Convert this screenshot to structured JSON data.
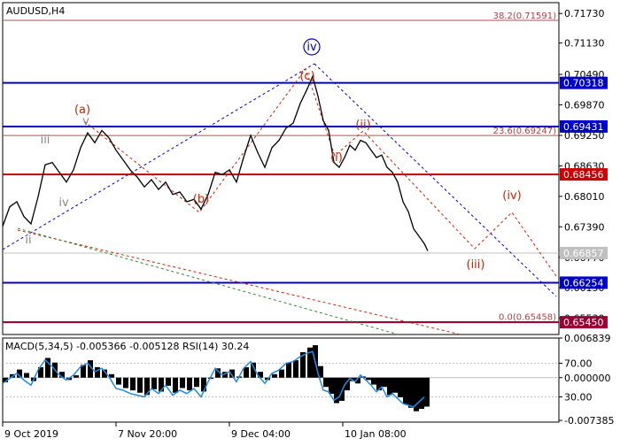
{
  "chart_data": [
    {
      "type": "line",
      "title": "AUDUSD,H4",
      "symbol": "AUDUSD",
      "timeframe": "H4",
      "ylim": [
        0.652,
        0.7195
      ],
      "y_ticks": [
        {
          "label": "0.71730",
          "value": 0.7173
        },
        {
          "label": "0.71130",
          "value": 0.7113
        },
        {
          "label": "0.70490",
          "value": 0.7049
        },
        {
          "label": "0.69870",
          "value": 0.6987
        },
        {
          "label": "0.69250",
          "value": 0.6925
        },
        {
          "label": "0.68630",
          "value": 0.6863
        },
        {
          "label": "0.68010",
          "value": 0.6801
        },
        {
          "label": "0.67390",
          "value": 0.6739
        },
        {
          "label": "0.66770",
          "value": 0.6677
        },
        {
          "label": "0.66150",
          "value": 0.6615
        },
        {
          "label": "0.65530",
          "value": 0.6553
        }
      ],
      "x_ticks": [
        "9 Oct 2019",
        "7 Nov 20:00",
        "9 Dec 04:00",
        "10 Jan 08:00"
      ],
      "price_series": [
        [
          0,
          0.674
        ],
        [
          8,
          0.678
        ],
        [
          16,
          0.679
        ],
        [
          24,
          0.676
        ],
        [
          32,
          0.6745
        ],
        [
          40,
          0.68
        ],
        [
          48,
          0.6865
        ],
        [
          56,
          0.687
        ],
        [
          64,
          0.685
        ],
        [
          72,
          0.683
        ],
        [
          80,
          0.6855
        ],
        [
          88,
          0.69
        ],
        [
          96,
          0.693
        ],
        [
          104,
          0.691
        ],
        [
          112,
          0.6935
        ],
        [
          120,
          0.692
        ],
        [
          128,
          0.6895
        ],
        [
          136,
          0.6875
        ],
        [
          144,
          0.6855
        ],
        [
          152,
          0.684
        ],
        [
          160,
          0.682
        ],
        [
          168,
          0.6835
        ],
        [
          176,
          0.6815
        ],
        [
          184,
          0.683
        ],
        [
          192,
          0.6805
        ],
        [
          200,
          0.681
        ],
        [
          208,
          0.679
        ],
        [
          216,
          0.6795
        ],
        [
          224,
          0.6775
        ],
        [
          232,
          0.6805
        ],
        [
          240,
          0.685
        ],
        [
          248,
          0.6845
        ],
        [
          256,
          0.6855
        ],
        [
          264,
          0.683
        ],
        [
          272,
          0.688
        ],
        [
          280,
          0.6925
        ],
        [
          288,
          0.689
        ],
        [
          296,
          0.686
        ],
        [
          304,
          0.69
        ],
        [
          312,
          0.6915
        ],
        [
          320,
          0.694
        ],
        [
          328,
          0.695
        ],
        [
          336,
          0.699
        ],
        [
          344,
          0.702
        ],
        [
          350,
          0.7045
        ],
        [
          356,
          0.7005
        ],
        [
          362,
          0.6955
        ],
        [
          368,
          0.6935
        ],
        [
          374,
          0.687
        ],
        [
          380,
          0.686
        ],
        [
          386,
          0.688
        ],
        [
          392,
          0.6905
        ],
        [
          398,
          0.6895
        ],
        [
          404,
          0.6915
        ],
        [
          410,
          0.691
        ],
        [
          416,
          0.6895
        ],
        [
          422,
          0.688
        ],
        [
          428,
          0.6885
        ],
        [
          434,
          0.686
        ],
        [
          440,
          0.685
        ],
        [
          446,
          0.683
        ],
        [
          452,
          0.679
        ],
        [
          458,
          0.677
        ],
        [
          464,
          0.6735
        ],
        [
          470,
          0.672
        ],
        [
          476,
          0.6705
        ],
        [
          480,
          0.669
        ]
      ],
      "current_price": {
        "label": "0.66857",
        "value": 0.66857
      },
      "horizontal_levels": [
        {
          "label": "0.70318",
          "value": 0.70318,
          "color": "#0000cc"
        },
        {
          "label": "0.69431",
          "value": 0.69431,
          "color": "#0000cc"
        },
        {
          "label": "0.68456",
          "value": 0.68456,
          "color": "#cc0000"
        },
        {
          "label": "0.66254",
          "value": 0.66254,
          "color": "#0000cc"
        },
        {
          "label": "0.65450",
          "value": 0.6545,
          "color": "#990033"
        }
      ],
      "fibonacci_levels": [
        {
          "label": "38.2(0.71591)",
          "value": 0.71591
        },
        {
          "label": "23.6(0.69247)",
          "value": 0.69247
        },
        {
          "label": "0.0(0.65458)",
          "value": 0.65458
        }
      ],
      "wave_labels": [
        {
          "text": "ii",
          "color": "#888888"
        },
        {
          "text": "iii",
          "color": "#888888"
        },
        {
          "text": "iv",
          "color": "#888888"
        },
        {
          "text": "v",
          "color": "#888888"
        },
        {
          "text": "(a)",
          "color": "#cc2200"
        },
        {
          "text": "(b)",
          "color": "#cc2200"
        },
        {
          "text": "(c)",
          "color": "#cc2200"
        },
        {
          "text": "iv",
          "color": "#0000cc",
          "circled": true
        },
        {
          "text": "(i)",
          "color": "#cc2200"
        },
        {
          "text": "(ii)",
          "color": "#cc2200"
        },
        {
          "text": "(iii)",
          "color": "#cc2200"
        },
        {
          "text": "(iv)",
          "color": "#cc2200"
        }
      ]
    },
    {
      "type": "line",
      "title": "MACD(5,34,5) -0.005366 -0.005128 RSI(14) 30.24",
      "ylim": [
        -0.00768,
        0.00684
      ],
      "y_ticks_macd": [
        {
          "label": "0.006839",
          "value": 0.006839
        },
        {
          "label": "0.000000",
          "value": 0.0
        },
        {
          "label": "-0.007385",
          "value": -0.007385
        }
      ],
      "y_ticks_rsi": [
        {
          "label": "70.00",
          "value": 70
        },
        {
          "label": "30.00",
          "value": 30
        }
      ],
      "macd_histogram": [
        [
          0,
          -0.0008
        ],
        [
          8,
          0.0006
        ],
        [
          16,
          0.0014
        ],
        [
          24,
          0.0008
        ],
        [
          32,
          -0.0006
        ],
        [
          40,
          0.0018
        ],
        [
          48,
          0.0034
        ],
        [
          56,
          0.0026
        ],
        [
          64,
          0.001
        ],
        [
          72,
          -0.0004
        ],
        [
          80,
          0.0004
        ],
        [
          88,
          0.0022
        ],
        [
          96,
          0.003
        ],
        [
          104,
          0.0018
        ],
        [
          112,
          0.0014
        ],
        [
          120,
          0.0006
        ],
        [
          128,
          -0.0012
        ],
        [
          136,
          -0.0018
        ],
        [
          144,
          -0.0022
        ],
        [
          152,
          -0.0026
        ],
        [
          160,
          -0.003
        ],
        [
          168,
          -0.002
        ],
        [
          176,
          -0.0024
        ],
        [
          184,
          -0.0014
        ],
        [
          192,
          -0.0026
        ],
        [
          200,
          -0.0018
        ],
        [
          208,
          -0.0022
        ],
        [
          216,
          -0.0016
        ],
        [
          224,
          -0.0024
        ],
        [
          232,
          -0.0002
        ],
        [
          240,
          0.0016
        ],
        [
          248,
          0.001
        ],
        [
          256,
          0.0014
        ],
        [
          264,
          0.0002
        ],
        [
          272,
          0.0018
        ],
        [
          280,
          0.0026
        ],
        [
          288,
          0.001
        ],
        [
          296,
          -0.0004
        ],
        [
          304,
          0.0006
        ],
        [
          312,
          0.0014
        ],
        [
          320,
          0.0026
        ],
        [
          328,
          0.003
        ],
        [
          336,
          0.0044
        ],
        [
          344,
          0.0052
        ],
        [
          350,
          0.0056
        ],
        [
          356,
          0.002
        ],
        [
          362,
          -0.0016
        ],
        [
          368,
          -0.0028
        ],
        [
          374,
          -0.0044
        ],
        [
          380,
          -0.004
        ],
        [
          386,
          -0.0022
        ],
        [
          392,
          -0.0006
        ],
        [
          398,
          -0.001
        ],
        [
          404,
          0.0002
        ],
        [
          410,
          -0.0004
        ],
        [
          416,
          -0.0012
        ],
        [
          422,
          -0.0022
        ],
        [
          428,
          -0.0016
        ],
        [
          434,
          -0.003
        ],
        [
          440,
          -0.0026
        ],
        [
          446,
          -0.0034
        ],
        [
          452,
          -0.0046
        ],
        [
          458,
          -0.0052
        ],
        [
          464,
          -0.0058
        ],
        [
          470,
          -0.0054
        ],
        [
          476,
          -0.005
        ]
      ],
      "rsi_series": [
        [
          0,
          46
        ],
        [
          8,
          52
        ],
        [
          16,
          58
        ],
        [
          24,
          50
        ],
        [
          32,
          44
        ],
        [
          40,
          62
        ],
        [
          48,
          74
        ],
        [
          56,
          66
        ],
        [
          64,
          56
        ],
        [
          72,
          50
        ],
        [
          80,
          56
        ],
        [
          88,
          66
        ],
        [
          96,
          70
        ],
        [
          104,
          60
        ],
        [
          112,
          64
        ],
        [
          120,
          54
        ],
        [
          128,
          40
        ],
        [
          136,
          38
        ],
        [
          144,
          34
        ],
        [
          152,
          32
        ],
        [
          160,
          30
        ],
        [
          168,
          40
        ],
        [
          176,
          34
        ],
        [
          184,
          44
        ],
        [
          192,
          32
        ],
        [
          200,
          38
        ],
        [
          208,
          34
        ],
        [
          216,
          40
        ],
        [
          224,
          30
        ],
        [
          232,
          48
        ],
        [
          240,
          64
        ],
        [
          248,
          56
        ],
        [
          256,
          60
        ],
        [
          264,
          48
        ],
        [
          272,
          64
        ],
        [
          280,
          72
        ],
        [
          288,
          56
        ],
        [
          296,
          46
        ],
        [
          304,
          58
        ],
        [
          312,
          62
        ],
        [
          320,
          70
        ],
        [
          328,
          72
        ],
        [
          336,
          78
        ],
        [
          344,
          82
        ],
        [
          350,
          84
        ],
        [
          356,
          58
        ],
        [
          362,
          38
        ],
        [
          368,
          36
        ],
        [
          374,
          26
        ],
        [
          380,
          30
        ],
        [
          386,
          44
        ],
        [
          392,
          52
        ],
        [
          398,
          48
        ],
        [
          404,
          56
        ],
        [
          410,
          50
        ],
        [
          416,
          44
        ],
        [
          422,
          36
        ],
        [
          428,
          42
        ],
        [
          434,
          30
        ],
        [
          440,
          34
        ],
        [
          446,
          28
        ],
        [
          452,
          22
        ],
        [
          458,
          20
        ],
        [
          464,
          18
        ],
        [
          470,
          24
        ],
        [
          476,
          30
        ]
      ]
    }
  ]
}
